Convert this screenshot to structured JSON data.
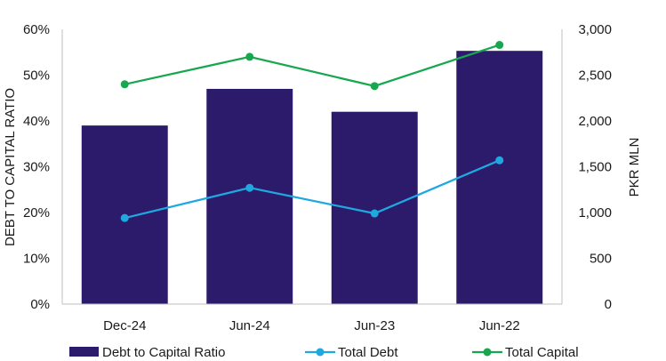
{
  "chart_data": {
    "type": "bar",
    "categories": [
      "Dec-24",
      "Jun-24",
      "Jun-23",
      "Jun-22"
    ],
    "ylabel": "DEBT TO CAPITAL RATIO",
    "y2label": "PKR MLN",
    "ylim": [
      0,
      60
    ],
    "y2lim": [
      0,
      3000
    ],
    "y_ticks": [
      "0%",
      "10%",
      "20%",
      "30%",
      "40%",
      "50%",
      "60%"
    ],
    "y2_ticks": [
      "0",
      "500",
      "1,000",
      "1,500",
      "2,000",
      "2,500",
      "3,000"
    ],
    "grid": false,
    "legend_position": "bottom",
    "series": [
      {
        "name": "Debt to Capital Ratio",
        "kind": "bar",
        "axis": "left",
        "color": "#2c1a6b",
        "values": [
          39,
          47,
          42,
          55.3
        ]
      },
      {
        "name": "Total Debt",
        "kind": "line",
        "axis": "right",
        "color": "#1fa8e0",
        "values": [
          940,
          1270,
          990,
          1570
        ]
      },
      {
        "name": "Total Capital",
        "kind": "line",
        "axis": "right",
        "color": "#17a84f",
        "values": [
          2400,
          2700,
          2380,
          2830
        ]
      }
    ]
  }
}
